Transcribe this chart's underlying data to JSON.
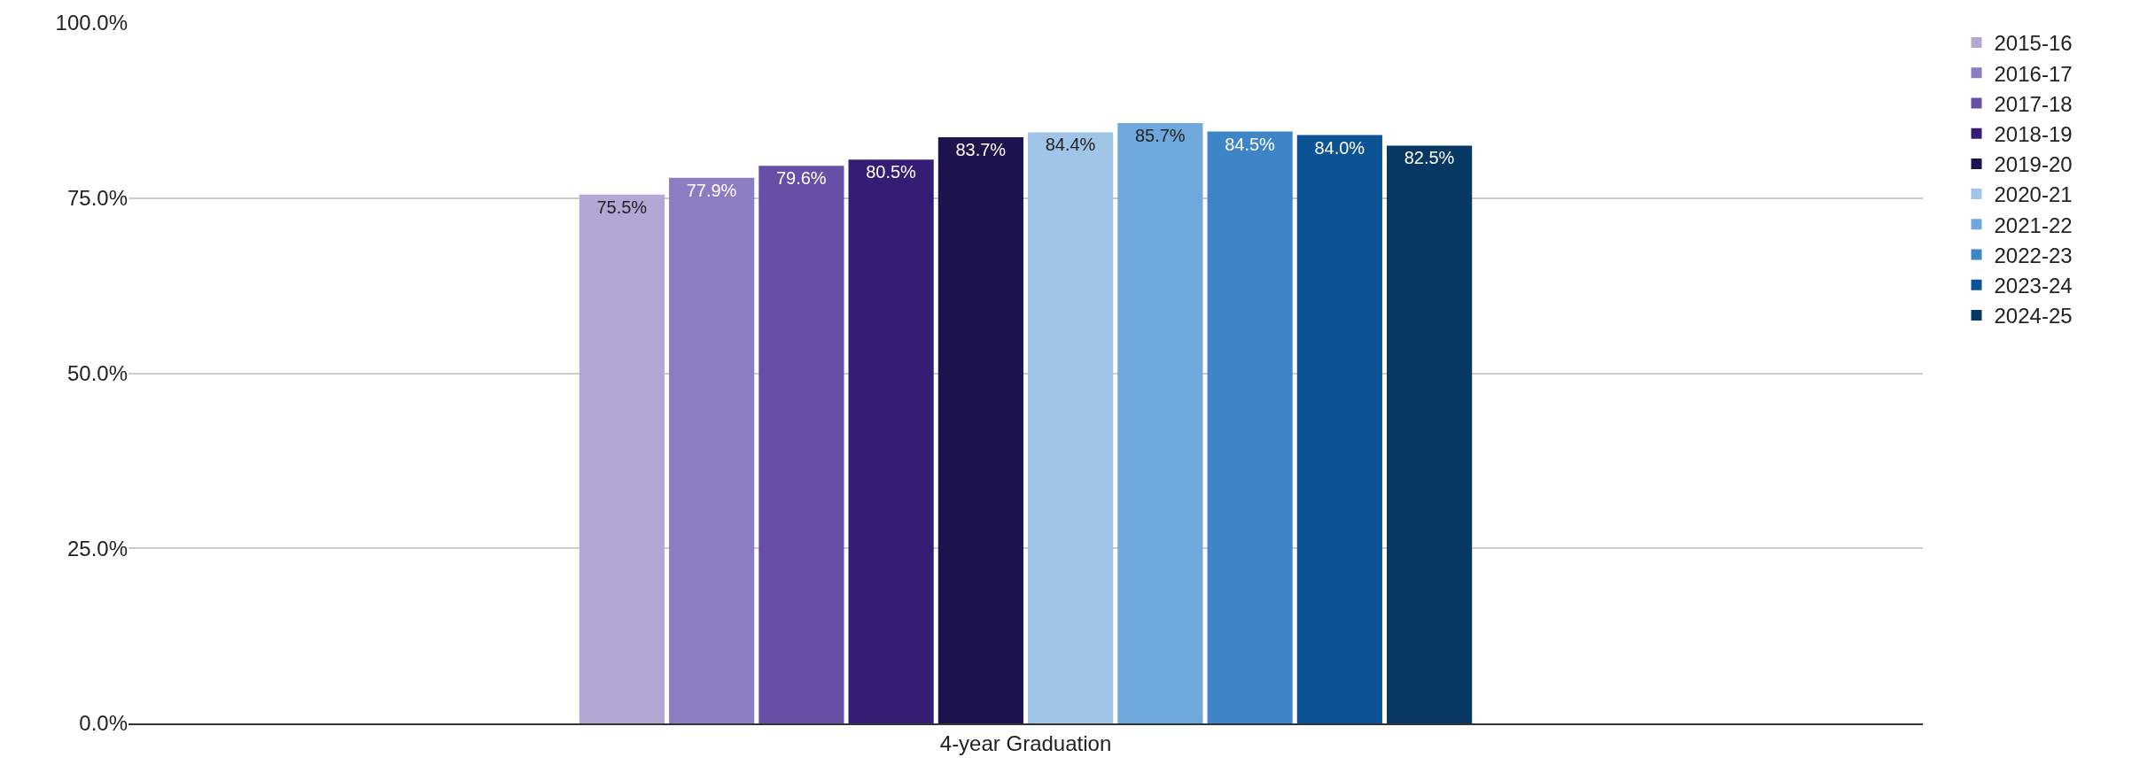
{
  "chart_data": {
    "type": "bar",
    "categories": [
      "4-year Graduation"
    ],
    "series": [
      {
        "name": "2015-16",
        "color": "#b4a7d6",
        "values": [
          75.5
        ],
        "value_labels": [
          "75.5%"
        ]
      },
      {
        "name": "2016-17",
        "color": "#8e7cc3",
        "values": [
          77.9
        ],
        "value_labels": [
          "77.9%"
        ]
      },
      {
        "name": "2017-18",
        "color": "#674ea7",
        "values": [
          79.6
        ],
        "value_labels": [
          "79.6%"
        ]
      },
      {
        "name": "2018-19",
        "color": "#351c75",
        "values": [
          80.5
        ],
        "value_labels": [
          "80.5%"
        ]
      },
      {
        "name": "2019-20",
        "color": "#20124d",
        "values": [
          83.7
        ],
        "value_labels": [
          "83.7%"
        ]
      },
      {
        "name": "2020-21",
        "color": "#9fc5e8",
        "values": [
          84.4
        ],
        "value_labels": [
          "84.4%"
        ]
      },
      {
        "name": "2021-22",
        "color": "#6fa8dc",
        "values": [
          85.7
        ],
        "value_labels": [
          "85.7%"
        ]
      },
      {
        "name": "2022-23",
        "color": "#3d85c6",
        "values": [
          84.5
        ],
        "value_labels": [
          "84.5%"
        ]
      },
      {
        "name": "2023-24",
        "color": "#0b5394",
        "values": [
          84.0
        ],
        "value_labels": [
          "84.0%"
        ]
      },
      {
        "name": "2024-25",
        "color": "#073763",
        "values": [
          82.5
        ],
        "value_labels": [
          "82.5%"
        ]
      }
    ],
    "ylim": [
      0,
      100
    ],
    "yticks": [
      {
        "value": 0,
        "label": "0.0%"
      },
      {
        "value": 25,
        "label": "25.0%"
      },
      {
        "value": 50,
        "label": "50.0%"
      },
      {
        "value": 75,
        "label": "75.0%"
      },
      {
        "value": 100,
        "label": "100.0%"
      }
    ],
    "grid": "y",
    "legend": "top right"
  }
}
